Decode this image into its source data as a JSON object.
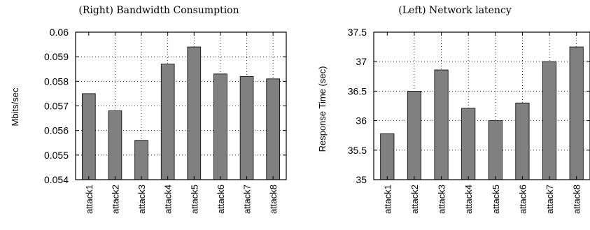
{
  "chart_data": [
    {
      "type": "bar",
      "title": "(Right) Bandwidth Consumption",
      "xlabel": "",
      "ylabel": "Mbits/sec",
      "ylim": [
        0.054,
        0.06
      ],
      "yticks": [
        "0.054",
        "0.055",
        "0.056",
        "0.057",
        "0.058",
        "0.059",
        "0.06"
      ],
      "categories": [
        "attack1",
        "attack2",
        "attack3",
        "attack4",
        "attack5",
        "attack6",
        "attack7",
        "attack8"
      ],
      "values": [
        0.0575,
        0.0568,
        0.0556,
        0.0587,
        0.0594,
        0.0583,
        0.0582,
        0.0581
      ],
      "grid": true,
      "bar_color": "#808080"
    },
    {
      "type": "bar",
      "title": "(Left) Network latency",
      "xlabel": "",
      "ylabel": "Response Time (sec)",
      "ylim": [
        35,
        37.5
      ],
      "yticks": [
        "35",
        "35.5",
        "36",
        "36.5",
        "37",
        "37.5"
      ],
      "categories": [
        "attack1",
        "attack2",
        "attack3",
        "attack4",
        "attack5",
        "attack6",
        "attack7",
        "attack8"
      ],
      "values": [
        35.78,
        36.5,
        36.86,
        36.21,
        36.0,
        36.3,
        37.0,
        37.25
      ],
      "grid": true,
      "bar_color": "#808080"
    }
  ]
}
